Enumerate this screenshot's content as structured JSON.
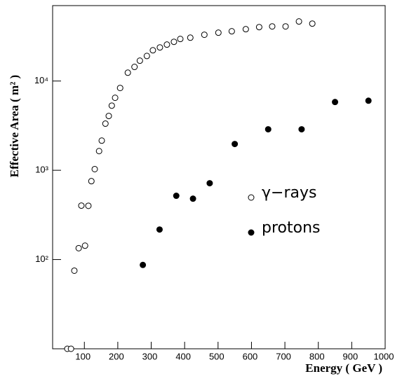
{
  "chart_data": {
    "type": "scatter",
    "x_label": "Energy ( GeV )",
    "y_label": "Effective Area ( m² )",
    "xlim": [
      5,
      1000
    ],
    "ylim": [
      10,
      70000
    ],
    "y_scale": "log",
    "xticks": [
      100,
      200,
      300,
      400,
      500,
      600,
      700,
      800,
      900,
      1000
    ],
    "yticks": [
      {
        "value": 100,
        "label": "10²"
      },
      {
        "value": 1000,
        "label": "10³"
      },
      {
        "value": 10000,
        "label": "10⁴"
      }
    ],
    "series": [
      {
        "name": "γ−rays",
        "color": "#000000",
        "marker": "open",
        "x": [
          49,
          60,
          70,
          83,
          91,
          102,
          112,
          121,
          131,
          144,
          152,
          163,
          173,
          182,
          192,
          207,
          230,
          250,
          266,
          287,
          305,
          326,
          347,
          368,
          387,
          417,
          459,
          501,
          541,
          583,
          623,
          662,
          702,
          742,
          782
        ],
        "values": [
          10,
          10,
          75,
          134,
          402,
          143,
          400,
          755,
          1030,
          1640,
          2150,
          3330,
          4060,
          5300,
          6490,
          8360,
          12400,
          14400,
          16900,
          19100,
          22100,
          23800,
          25600,
          27500,
          29600,
          30600,
          33000,
          34800,
          36100,
          38100,
          40200,
          40900,
          40900,
          46500,
          44000
        ]
      },
      {
        "name": "protons",
        "color": "#000000",
        "marker": "filled",
        "x": [
          275,
          325,
          375,
          425,
          475,
          550,
          650,
          750,
          850,
          950
        ],
        "values": [
          87,
          217,
          518,
          481,
          716,
          1970,
          2880,
          2880,
          5820,
          6020
        ]
      }
    ]
  }
}
